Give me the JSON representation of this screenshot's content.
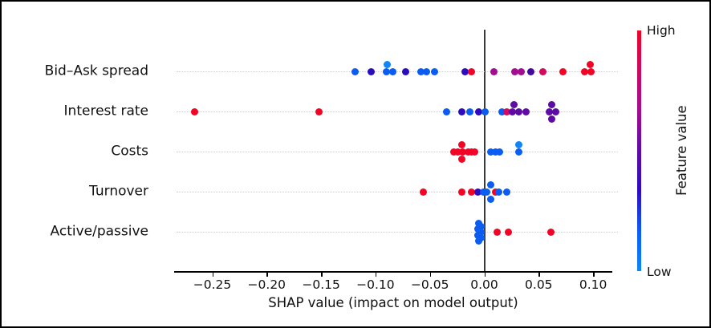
{
  "chart_data": {
    "type": "scatter",
    "variant": "shap-beeswarm-summary",
    "title": "",
    "xlabel": "SHAP value (impact on model output)",
    "ylabel": "",
    "xlim": [
      -0.285,
      0.117
    ],
    "grid": "dotted-horizontal-per-feature",
    "legend_position": "colorbar-right",
    "xticks": {
      "values": [
        -0.25,
        -0.2,
        -0.15,
        -0.1,
        -0.05,
        0.0,
        0.05,
        0.1
      ],
      "labels": [
        "−0.25",
        "−0.20",
        "−0.15",
        "−0.10",
        "−0.05",
        "0.00",
        "0.05",
        "0.10"
      ]
    },
    "colorbar": {
      "label": "Feature value",
      "high_label": "High",
      "low_label": "Low",
      "gradient_top_to_bottom": [
        "#f10526",
        "#c90a62",
        "#a30d92",
        "#5f0ba5",
        "#2d0cc0",
        "#0b5df2",
        "#0e86f7"
      ]
    },
    "palette": {
      "red": "#f10526",
      "crimson": "#d30a5e",
      "magenta": "#a30d92",
      "purple": "#5f0ba5",
      "indigo": "#45089e",
      "navy": "#2d0cc0",
      "blue": "#0b5df2",
      "brightblue": "#0e86f7"
    },
    "features": [
      {
        "name": "Bid–Ask spread",
        "points": [
          [
            -0.119,
            "blue",
            0
          ],
          [
            -0.104,
            "navy",
            0
          ],
          [
            -0.09,
            "blue",
            0
          ],
          [
            -0.089,
            "brightblue",
            -9
          ],
          [
            -0.084,
            "blue",
            0
          ],
          [
            -0.072,
            "navy",
            0
          ],
          [
            -0.058,
            "blue",
            0
          ],
          [
            -0.053,
            "blue",
            0
          ],
          [
            -0.046,
            "blue",
            0
          ],
          [
            -0.018,
            "navy",
            0
          ],
          [
            -0.012,
            "red",
            0
          ],
          [
            0.009,
            "magenta",
            0
          ],
          [
            0.028,
            "magenta",
            0
          ],
          [
            0.034,
            "magenta",
            0
          ],
          [
            0.043,
            "indigo",
            0
          ],
          [
            0.054,
            "crimson",
            0
          ],
          [
            0.072,
            "red",
            0
          ],
          [
            0.092,
            "red",
            0
          ],
          [
            0.098,
            "red",
            0
          ],
          [
            0.097,
            "red",
            -9
          ]
        ]
      },
      {
        "name": "Interest rate",
        "points": [
          [
            -0.266,
            "red",
            0
          ],
          [
            -0.152,
            "red",
            0
          ],
          [
            -0.035,
            "blue",
            0
          ],
          [
            -0.021,
            "navy",
            0
          ],
          [
            -0.013,
            "blue",
            0
          ],
          [
            -0.005,
            "navy",
            0
          ],
          [
            0.001,
            "blue",
            0
          ],
          [
            0.016,
            "blue",
            0
          ],
          [
            0.021,
            "crimson",
            0
          ],
          [
            0.026,
            "purple",
            0
          ],
          [
            0.027,
            "purple",
            -9
          ],
          [
            0.032,
            "purple",
            0
          ],
          [
            0.038,
            "purple",
            0
          ],
          [
            0.06,
            "purple",
            0
          ],
          [
            0.066,
            "purple",
            0
          ],
          [
            0.062,
            "purple",
            -9
          ],
          [
            0.062,
            "purple",
            9
          ]
        ]
      },
      {
        "name": "Costs",
        "points": [
          [
            -0.028,
            "red",
            0
          ],
          [
            -0.024,
            "red",
            0
          ],
          [
            -0.021,
            "red",
            -9
          ],
          [
            -0.021,
            "red",
            9
          ],
          [
            -0.02,
            "red",
            0
          ],
          [
            -0.015,
            "red",
            0
          ],
          [
            -0.012,
            "red",
            0
          ],
          [
            -0.009,
            "red",
            0
          ],
          [
            0.006,
            "blue",
            0
          ],
          [
            0.01,
            "blue",
            0
          ],
          [
            0.014,
            "blue",
            0
          ],
          [
            0.032,
            "blue",
            0
          ],
          [
            0.032,
            "brightblue",
            -9
          ]
        ]
      },
      {
        "name": "Turnover",
        "points": [
          [
            -0.056,
            "red",
            0
          ],
          [
            -0.021,
            "red",
            0
          ],
          [
            -0.012,
            "red",
            0
          ],
          [
            -0.006,
            "navy",
            0
          ],
          [
            -0.001,
            "blue",
            0
          ],
          [
            0.002,
            "blue",
            0
          ],
          [
            0.006,
            "blue",
            -9
          ],
          [
            0.006,
            "blue",
            9
          ],
          [
            0.01,
            "red",
            0
          ],
          [
            0.013,
            "blue",
            0
          ],
          [
            0.021,
            "blue",
            0
          ]
        ]
      },
      {
        "name": "Active/passive",
        "points": [
          [
            -0.005,
            "blue",
            -11
          ],
          [
            -0.003,
            "blue",
            -7
          ],
          [
            -0.006,
            "blue",
            -4
          ],
          [
            -0.003,
            "blue",
            0
          ],
          [
            -0.006,
            "blue",
            4
          ],
          [
            -0.003,
            "blue",
            7
          ],
          [
            -0.005,
            "blue",
            11
          ],
          [
            0.012,
            "red",
            0
          ],
          [
            0.022,
            "red",
            0
          ],
          [
            0.061,
            "red",
            0
          ]
        ]
      }
    ]
  }
}
